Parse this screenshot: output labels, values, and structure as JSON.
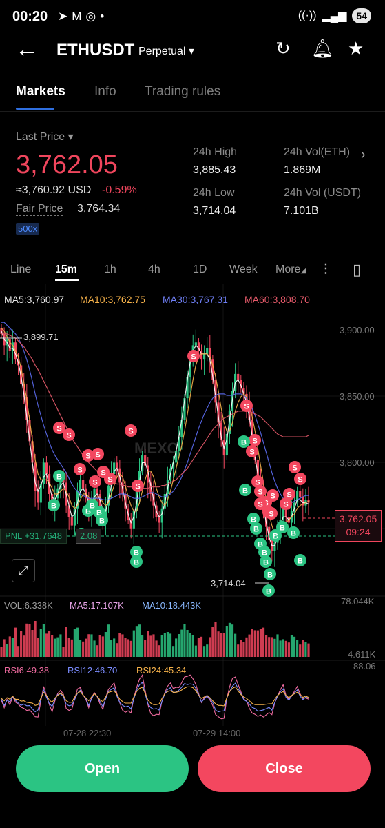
{
  "status_bar": {
    "time": "00:20",
    "battery": "54",
    "icons_left": [
      "telegram-icon",
      "mail-icon",
      "instagram-icon",
      "dot-icon"
    ]
  },
  "header": {
    "symbol": "ETHUSDT",
    "contract_type": "Perpetual"
  },
  "tabs": [
    {
      "label": "Markets",
      "active": true
    },
    {
      "label": "Info",
      "active": false
    },
    {
      "label": "Trading rules",
      "active": false
    }
  ],
  "ticker": {
    "last_price_label": "Last Price",
    "last_price": "3,762.05",
    "usd_equiv": "≈3,760.92 USD",
    "change_pct": "-0.59%",
    "fair_price_label": "Fair Price",
    "fair_price": "3,764.34",
    "leverage": "500x",
    "high_label": "24h High",
    "high": "3,885.43",
    "vol_eth_label": "24h Vol(ETH)",
    "vol_eth": "1.869M",
    "low_label": "24h Low",
    "low": "3,714.04",
    "vol_usdt_label": "24h Vol (USDT)",
    "vol_usdt": "7.101B"
  },
  "intervals": [
    {
      "label": "Line",
      "active": false
    },
    {
      "label": "15m",
      "active": true
    },
    {
      "label": "1h",
      "active": false
    },
    {
      "label": "4h",
      "active": false
    },
    {
      "label": "1D",
      "active": false
    },
    {
      "label": "Week",
      "active": false
    },
    {
      "label": "More",
      "active": false
    }
  ],
  "ma_legend": {
    "ma5": "MA5:3,760.97",
    "ma10": "MA10:3,762.75",
    "ma30": "MA30:3,767.31",
    "ma60": "MA60:3,808.70"
  },
  "price_axis": [
    "3,900.00",
    "3,850.00",
    "3,800.00"
  ],
  "chart_overlay": {
    "high_marker": "3,899.71",
    "low_marker": "3,714.04",
    "current_price": "3,762.05",
    "countdown": "09:24",
    "pnl": "PNL +31.7648",
    "position_qty": "2.08",
    "watermark": "MEXC"
  },
  "volume_legend": {
    "vol": "VOL:6.338K",
    "ma5": "MA5:17.107K",
    "ma10": "MA10:18.443K",
    "axis_max": "78.044K",
    "axis_min": "4.611K"
  },
  "rsi_legend": {
    "rsi6": "RSI6:49.38",
    "rsi12": "RSI12:46.70",
    "rsi24": "RSI24:45.34",
    "axis_max": "88.06"
  },
  "time_axis": [
    "07-28 22:30",
    "07-29 14:00"
  ],
  "actions": {
    "open": "Open",
    "close": "Close"
  },
  "colors": {
    "up": "#2bc483",
    "down": "#f3475f",
    "ma5": "#ffffff",
    "ma10": "#f5b14a",
    "ma30": "#5b6cf0",
    "ma60": "#e55a6a",
    "accent": "#2f6fe0"
  },
  "chart_data": {
    "type": "candlestick",
    "y_range": [
      3700,
      3905
    ],
    "candles_close": [
      3880,
      3872,
      3876,
      3868,
      3874,
      3862,
      3858,
      3845,
      3836,
      3820,
      3805,
      3790,
      3770,
      3762,
      3775,
      3790,
      3782,
      3768,
      3758,
      3765,
      3772,
      3780,
      3776,
      3760,
      3752,
      3746,
      3758,
      3770,
      3778,
      3772,
      3765,
      3756,
      3764,
      3772,
      3768,
      3758,
      3750,
      3760,
      3774,
      3782,
      3790,
      3786,
      3776,
      3768,
      3758,
      3750,
      3744,
      3756,
      3770,
      3784,
      3795,
      3788,
      3776,
      3768,
      3760,
      3752,
      3748,
      3758,
      3768,
      3778,
      3786,
      3790,
      3798,
      3808,
      3820,
      3835,
      3850,
      3862,
      3872,
      3874,
      3868,
      3862,
      3866,
      3870,
      3862,
      3848,
      3832,
      3818,
      3806,
      3795,
      3810,
      3826,
      3840,
      3852,
      3848,
      3842,
      3838,
      3832,
      3820,
      3805,
      3792,
      3780,
      3768,
      3756,
      3745,
      3736,
      3728,
      3734,
      3742,
      3750,
      3758,
      3752,
      3748,
      3756,
      3762,
      3770,
      3766,
      3760,
      3764,
      3762
    ],
    "series": [
      {
        "name": "MA5",
        "values": [
          3882,
          3876,
          3874,
          3870,
          3870,
          3866,
          3860,
          3850,
          3838,
          3822,
          3806,
          3790,
          3776,
          3770,
          3774,
          3780,
          3782,
          3774,
          3766,
          3764,
          3768,
          3774,
          3776,
          3768,
          3760,
          3752,
          3754,
          3762,
          3770,
          3772,
          3768,
          3762,
          3762,
          3766,
          3768,
          3764,
          3756,
          3756,
          3764,
          3774,
          3784,
          3786,
          3780,
          3772,
          3762,
          3754,
          3748,
          3752,
          3762,
          3776,
          3790,
          3790,
          3784,
          3774,
          3764,
          3756,
          3752,
          3754,
          3762,
          3772,
          3782,
          3790,
          3798,
          3808,
          3820,
          3834,
          3848,
          3860,
          3868,
          3872,
          3870,
          3866,
          3866,
          3866,
          3862,
          3850,
          3836,
          3822,
          3808,
          3800,
          3806,
          3820,
          3834,
          3846,
          3848,
          3844,
          3838,
          3832,
          3822,
          3808,
          3794,
          3782,
          3770,
          3758,
          3748,
          3738,
          3732,
          3732,
          3738,
          3746,
          3752,
          3752,
          3750,
          3752,
          3758,
          3764,
          3764,
          3762,
          3762,
          3761
        ]
      },
      {
        "name": "MA10",
        "values": [
          3884,
          3882,
          3878,
          3874,
          3872,
          3868,
          3864,
          3856,
          3846,
          3834,
          3820,
          3806,
          3792,
          3782,
          3778,
          3778,
          3778,
          3776,
          3772,
          3768,
          3768,
          3770,
          3772,
          3770,
          3766,
          3760,
          3758,
          3760,
          3764,
          3768,
          3768,
          3766,
          3764,
          3764,
          3766,
          3766,
          3762,
          3760,
          3762,
          3768,
          3774,
          3780,
          3782,
          3780,
          3774,
          3766,
          3760,
          3756,
          3756,
          3762,
          3770,
          3778,
          3784,
          3784,
          3780,
          3772,
          3766,
          3762,
          3760,
          3764,
          3770,
          3778,
          3786,
          3794,
          3802,
          3812,
          3824,
          3836,
          3848,
          3858,
          3864,
          3866,
          3866,
          3866,
          3864,
          3858,
          3850,
          3840,
          3828,
          3818,
          3812,
          3812,
          3818,
          3826,
          3832,
          3836,
          3838,
          3836,
          3830,
          3822,
          3812,
          3800,
          3788,
          3776,
          3764,
          3754,
          3746,
          3740,
          3738,
          3740,
          3744,
          3748,
          3750,
          3752,
          3754,
          3758,
          3760,
          3761,
          3762,
          3763
        ]
      },
      {
        "name": "MA30",
        "values": [
          3888,
          3888,
          3886,
          3884,
          3882,
          3880,
          3877,
          3873,
          3868,
          3862,
          3855,
          3847,
          3838,
          3830,
          3823,
          3816,
          3810,
          3804,
          3799,
          3795,
          3792,
          3789,
          3786,
          3783,
          3779,
          3775,
          3772,
          3770,
          3768,
          3767,
          3766,
          3765,
          3765,
          3765,
          3765,
          3765,
          3764,
          3764,
          3764,
          3765,
          3766,
          3767,
          3768,
          3768,
          3768,
          3767,
          3766,
          3765,
          3765,
          3765,
          3766,
          3767,
          3768,
          3769,
          3769,
          3768,
          3767,
          3766,
          3766,
          3767,
          3768,
          3770,
          3773,
          3776,
          3780,
          3785,
          3790,
          3796,
          3802,
          3808,
          3814,
          3819,
          3824,
          3828,
          3832,
          3835,
          3837,
          3838,
          3838,
          3838,
          3837,
          3837,
          3837,
          3838,
          3838,
          3838,
          3837,
          3835,
          3832,
          3828,
          3823,
          3817,
          3811,
          3804,
          3797,
          3790,
          3783,
          3777,
          3772,
          3768,
          3765,
          3763,
          3762,
          3762,
          3763,
          3764,
          3765,
          3766,
          3767,
          3767
        ]
      },
      {
        "name": "MA60",
        "values": [
          3880,
          3880,
          3880,
          3879,
          3878,
          3877,
          3875,
          3873,
          3871,
          3868,
          3865,
          3862,
          3858,
          3855,
          3851,
          3847,
          3843,
          3839,
          3835,
          3831,
          3827,
          3823,
          3819,
          3815,
          3811,
          3807,
          3804,
          3801,
          3798,
          3795,
          3792,
          3790,
          3788,
          3786,
          3784,
          3782,
          3780,
          3779,
          3778,
          3777,
          3776,
          3775,
          3775,
          3774,
          3774,
          3773,
          3773,
          3773,
          3772,
          3772,
          3772,
          3772,
          3772,
          3773,
          3773,
          3773,
          3773,
          3774,
          3774,
          3775,
          3776,
          3777,
          3778,
          3780,
          3782,
          3784,
          3786,
          3789,
          3792,
          3795,
          3798,
          3801,
          3804,
          3807,
          3810,
          3813,
          3815,
          3817,
          3819,
          3821,
          3822,
          3823,
          3824,
          3825,
          3826,
          3826,
          3826,
          3826,
          3826,
          3825,
          3824,
          3823,
          3822,
          3820,
          3818,
          3816,
          3814,
          3812,
          3810,
          3809,
          3808,
          3808,
          3808,
          3808,
          3808,
          3808,
          3808,
          3808,
          3808,
          3809
        ]
      }
    ]
  }
}
